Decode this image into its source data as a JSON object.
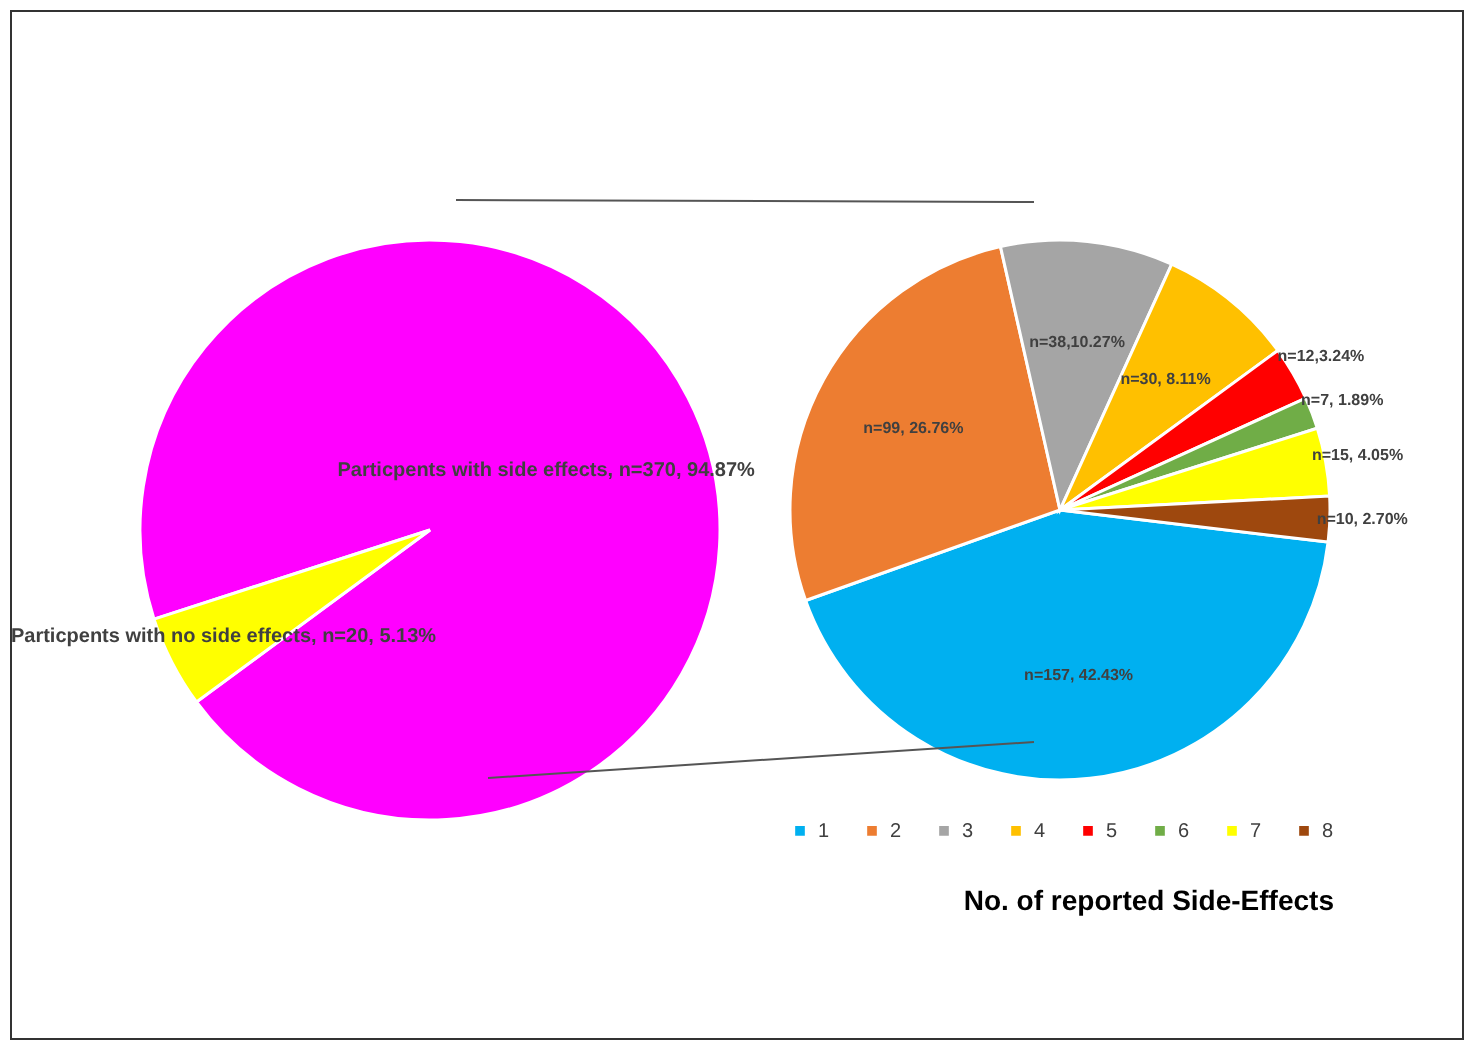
{
  "chart_data": [
    {
      "type": "pie",
      "categories": [
        "Particpents with side effects",
        "Particpents with no side effects"
      ],
      "values": [
        370,
        20
      ],
      "colors": [
        "#ff00ff",
        "#ffff00"
      ],
      "value_labels": [
        "n=370, 94.87%",
        "n=20, 5.13%"
      ],
      "legend": false
    },
    {
      "type": "pie",
      "categories": [
        "1",
        "2",
        "3",
        "4",
        "5",
        "6",
        "7",
        "8"
      ],
      "values": [
        157,
        99,
        38,
        30,
        12,
        7,
        15,
        10
      ],
      "colors": [
        "#00b0f0",
        "#ed7d31",
        "#a5a5a5",
        "#ffc000",
        "#ff0000",
        "#70ad47",
        "#ffff00",
        "#9e480e"
      ],
      "value_labels": [
        "n=157, 42.43%",
        "n=99, 26.76%",
        "n=38,10.27%",
        "n=30, 8.11%",
        "n=12,3.24%",
        "n=7, 1.89%",
        "n=15, 4.05%",
        "n=10, 2.70%"
      ],
      "legend": "bottom",
      "legend_title": "No. of reported Side-Effects"
    }
  ]
}
